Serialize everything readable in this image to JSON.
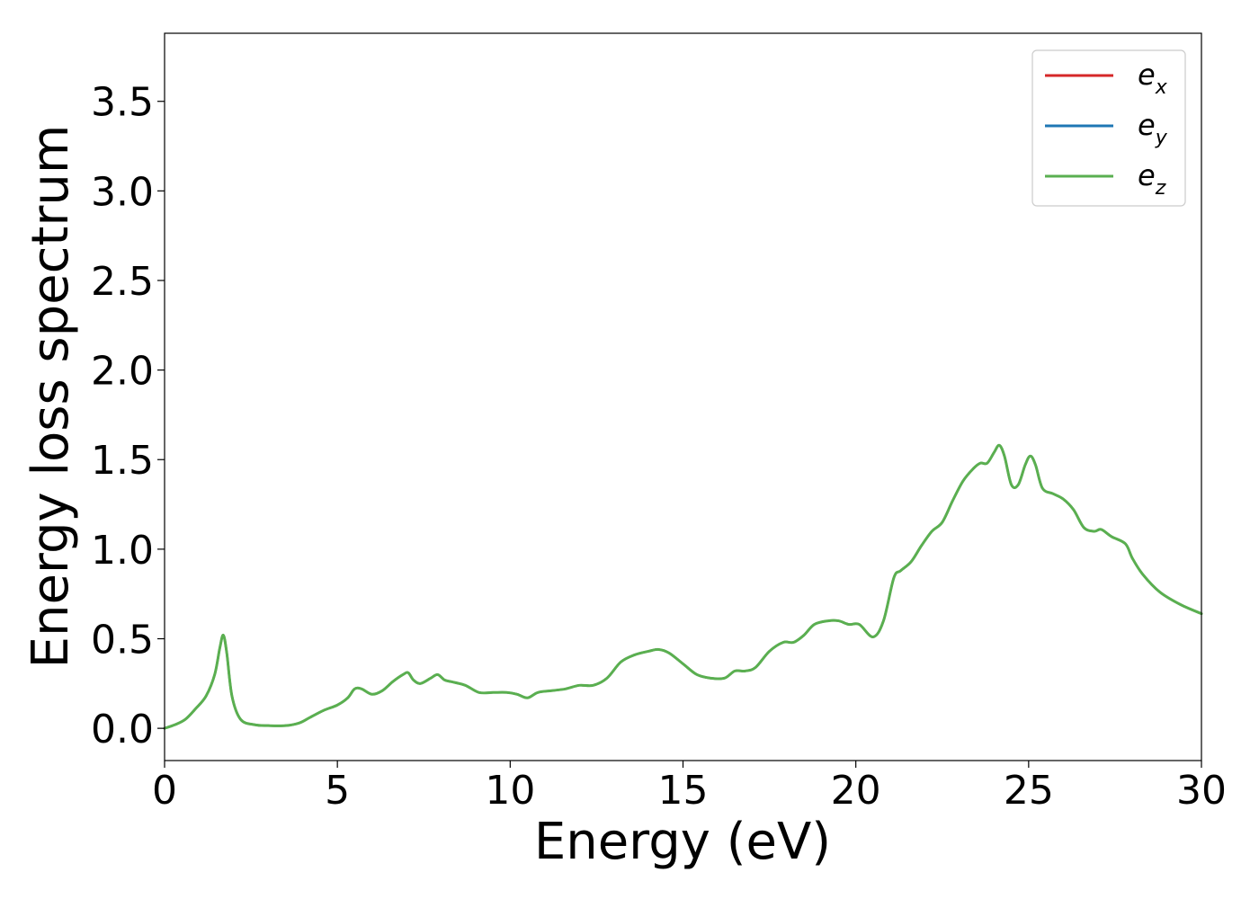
{
  "chart_data": {
    "type": "line",
    "title": "",
    "xlabel": "Energy (eV)",
    "ylabel": "Energy loss spectrum",
    "xlim": [
      0,
      30
    ],
    "ylim": [
      -0.18,
      3.88
    ],
    "xticks": [
      {
        "value": 0,
        "label": "0"
      },
      {
        "value": 5,
        "label": "5"
      },
      {
        "value": 10,
        "label": "10"
      },
      {
        "value": 15,
        "label": "15"
      },
      {
        "value": 20,
        "label": "20"
      },
      {
        "value": 25,
        "label": "25"
      },
      {
        "value": 30,
        "label": "30"
      }
    ],
    "yticks": [
      {
        "value": 0.0,
        "label": "0.0"
      },
      {
        "value": 0.5,
        "label": "0.5"
      },
      {
        "value": 1.0,
        "label": "1.0"
      },
      {
        "value": 1.5,
        "label": "1.5"
      },
      {
        "value": 2.0,
        "label": "2.0"
      },
      {
        "value": 2.5,
        "label": "2.5"
      },
      {
        "value": 3.0,
        "label": "3.0"
      },
      {
        "value": 3.5,
        "label": "3.5"
      }
    ],
    "grid": false,
    "legend_position": "top-right",
    "x": [
      0,
      0.3,
      0.6,
      0.9,
      1.2,
      1.45,
      1.6,
      1.7,
      1.8,
      1.95,
      2.2,
      2.6,
      3.0,
      3.5,
      3.9,
      4.2,
      4.6,
      5.0,
      5.3,
      5.5,
      5.7,
      6.0,
      6.3,
      6.6,
      6.9,
      7.05,
      7.2,
      7.4,
      7.7,
      7.9,
      8.1,
      8.3,
      8.7,
      9.1,
      9.5,
      9.9,
      10.2,
      10.5,
      10.8,
      11.2,
      11.6,
      12.0,
      12.4,
      12.8,
      13.2,
      13.6,
      14.0,
      14.3,
      14.6,
      15.0,
      15.4,
      15.8,
      16.2,
      16.5,
      16.8,
      17.1,
      17.5,
      17.9,
      18.2,
      18.5,
      18.8,
      19.2,
      19.5,
      19.8,
      20.1,
      20.5,
      20.8,
      21.1,
      21.3,
      21.6,
      21.9,
      22.2,
      22.5,
      22.8,
      23.1,
      23.4,
      23.6,
      23.8,
      24.0,
      24.15,
      24.3,
      24.5,
      24.7,
      24.9,
      25.05,
      25.2,
      25.4,
      25.7,
      26.0,
      26.3,
      26.6,
      26.9,
      27.1,
      27.4,
      27.8,
      28.0,
      28.3,
      28.8,
      29.4,
      30.0
    ],
    "series": [
      {
        "name": "e_x",
        "color": "#d62728",
        "width": 2.5
      },
      {
        "name": "e_y",
        "color": "#1f77b4",
        "width": 2.5
      },
      {
        "name": "e_z",
        "color": "#5aaf50",
        "width": 3
      }
    ],
    "values": [
      0.0,
      0.02,
      0.05,
      0.11,
      0.18,
      0.3,
      0.45,
      0.52,
      0.42,
      0.18,
      0.05,
      0.02,
      0.015,
      0.015,
      0.03,
      0.06,
      0.1,
      0.13,
      0.17,
      0.22,
      0.22,
      0.19,
      0.21,
      0.26,
      0.3,
      0.31,
      0.27,
      0.25,
      0.28,
      0.3,
      0.27,
      0.26,
      0.24,
      0.2,
      0.2,
      0.2,
      0.19,
      0.17,
      0.2,
      0.21,
      0.22,
      0.24,
      0.24,
      0.28,
      0.37,
      0.41,
      0.43,
      0.44,
      0.42,
      0.36,
      0.3,
      0.28,
      0.28,
      0.32,
      0.32,
      0.34,
      0.43,
      0.48,
      0.48,
      0.52,
      0.58,
      0.6,
      0.6,
      0.58,
      0.58,
      0.51,
      0.6,
      0.84,
      0.88,
      0.93,
      1.02,
      1.1,
      1.15,
      1.27,
      1.38,
      1.45,
      1.48,
      1.48,
      1.54,
      1.58,
      1.52,
      1.36,
      1.36,
      1.47,
      1.52,
      1.47,
      1.34,
      1.31,
      1.28,
      1.22,
      1.12,
      1.1,
      1.11,
      1.07,
      1.03,
      0.95,
      0.86,
      0.76,
      0.69,
      0.64
    ]
  }
}
